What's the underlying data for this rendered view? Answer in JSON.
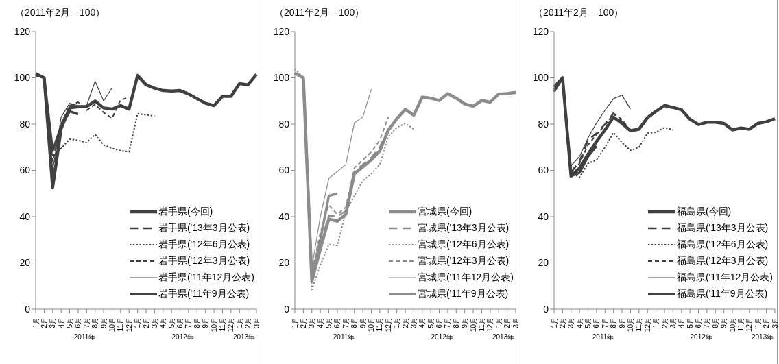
{
  "chart_data": [
    {
      "type": "line",
      "ylabel": "（2011年2月＝100）",
      "categories": [
        "1月",
        "2月",
        "3月",
        "4月",
        "5月",
        "6月",
        "7月",
        "8月",
        "9月",
        "10月",
        "11月",
        "12月",
        "1月",
        "2月",
        "3月",
        "4月",
        "5月",
        "6月",
        "7月",
        "8月",
        "9月",
        "10月",
        "11月",
        "12月",
        "1月",
        "2月",
        "3月"
      ],
      "ylim": [
        0,
        120
      ],
      "yticks": [
        0,
        20,
        40,
        60,
        80,
        100,
        120
      ],
      "grid": false,
      "legend": "bottom right",
      "annotations": [
        "2011年",
        "2012年",
        "2013年"
      ],
      "series": [
        {
          "name": "岩手県(今回)",
          "color": "#404040",
          "line_style": "solid",
          "values": [
            101.8,
            100,
            52.6,
            78,
            87,
            87.5,
            87.5,
            90,
            87,
            86.5,
            88,
            86.5,
            101,
            97,
            95.5,
            94.5,
            94.3,
            94.5,
            93,
            91,
            89,
            88,
            92,
            92,
            97.5,
            97,
            101.5
          ]
        },
        {
          "name": "岩手県('13年3月公表)",
          "color": "#404040",
          "line_style": "dashed",
          "values": [
            101,
            100,
            57,
            80,
            87,
            89.5,
            null,
            null,
            null,
            null,
            null,
            null,
            null,
            null,
            null,
            null,
            null,
            null,
            null,
            null,
            null,
            null,
            null,
            null,
            null,
            null,
            null
          ]
        },
        {
          "name": "岩手県('12年6月公表)",
          "color": "#404040",
          "line_style": "dotted",
          "values": [
            101,
            100,
            66,
            69.5,
            73.5,
            73,
            72,
            75.5,
            71,
            69.5,
            68.5,
            68,
            84.5,
            84,
            83.5,
            null,
            null,
            null,
            null,
            null,
            null,
            null,
            null,
            null,
            null,
            null,
            null
          ]
        },
        {
          "name": "岩手県('12年3月公表)",
          "color": "#404040",
          "line_style": "dashed",
          "values": [
            101,
            100,
            64,
            80,
            88,
            89.5,
            86,
            88.5,
            85,
            82.5,
            90.5,
            91.5,
            null,
            null,
            null,
            null,
            null,
            null,
            null,
            null,
            null,
            null,
            null,
            null,
            null,
            null,
            null
          ]
        },
        {
          "name": "岩手県('11年12月公表)",
          "color": "#404040",
          "line_style": "solid",
          "values": [
            101,
            100,
            60,
            83,
            89,
            88,
            88,
            98.5,
            90,
            95.7,
            null,
            null,
            null,
            null,
            null,
            null,
            null,
            null,
            null,
            null,
            null,
            null,
            null,
            null,
            null,
            null,
            null
          ]
        },
        {
          "name": "岩手県('11年9月公表)",
          "color": "#404040",
          "line_style": "solid",
          "values": [
            101.5,
            100,
            68.5,
            79,
            85.5,
            84.3,
            null,
            null,
            null,
            null,
            null,
            null,
            null,
            null,
            null,
            null,
            null,
            null,
            null,
            null,
            null,
            null,
            null,
            null,
            null,
            null,
            null
          ]
        }
      ]
    },
    {
      "type": "line",
      "ylabel": "（2011年2月＝100）",
      "categories": [
        "1月",
        "2月",
        "3月",
        "4月",
        "5月",
        "6月",
        "7月",
        "8月",
        "9月",
        "10月",
        "11月",
        "12月",
        "1月",
        "2月",
        "3月",
        "4月",
        "5月",
        "6月",
        "7月",
        "8月",
        "9月",
        "10月",
        "11月",
        "12月",
        "1月",
        "2月",
        "3月"
      ],
      "ylim": [
        0,
        120
      ],
      "yticks": [
        0,
        20,
        40,
        60,
        80,
        100,
        120
      ],
      "grid": false,
      "legend": "bottom right",
      "annotations": [
        "2011年",
        "2012年",
        "2013年"
      ],
      "series": [
        {
          "name": "宮城県(今回)",
          "color": "#8c8c8c",
          "line_style": "solid",
          "values": [
            102,
            100,
            12,
            26,
            39,
            38,
            41,
            58.5,
            61.5,
            64.5,
            68.4,
            77.3,
            82.3,
            86.4,
            83.8,
            91.7,
            91.2,
            90.2,
            93.2,
            91.2,
            88.7,
            87.7,
            90.2,
            89.5,
            93,
            93.2,
            93.7
          ]
        },
        {
          "name": "宮城県('13年3月公表)",
          "color": "#8c8c8c",
          "line_style": "dashed",
          "values": [
            102,
            100,
            13,
            28,
            40.5,
            40,
            42.5,
            59.5,
            62.5,
            65.5,
            70,
            78,
            null,
            null,
            null,
            null,
            null,
            null,
            null,
            null,
            null,
            null,
            null,
            null,
            null,
            null,
            null
          ]
        },
        {
          "name": "宮城県('12年6月公表)",
          "color": "#8c8c8c",
          "line_style": "dotted",
          "values": [
            104,
            100,
            8.5,
            19,
            28,
            27.5,
            42,
            49,
            55.5,
            58.5,
            62.5,
            74.5,
            78.5,
            80.3,
            77.8,
            null,
            null,
            null,
            null,
            null,
            null,
            null,
            null,
            null,
            null,
            null,
            null
          ]
        },
        {
          "name": "宮城県('12年3月公表)",
          "color": "#8c8c8c",
          "line_style": "dashed",
          "values": [
            102,
            100,
            16,
            33,
            45,
            41,
            44,
            61,
            64.5,
            68,
            73,
            83,
            null,
            null,
            null,
            null,
            null,
            null,
            null,
            null,
            null,
            null,
            null,
            null,
            null,
            null,
            null
          ]
        },
        {
          "name": "宮城県('11年12月公表)",
          "color": "#8c8c8c",
          "line_style": "solid",
          "values": [
            102,
            100,
            18,
            40,
            56.5,
            59.5,
            62.5,
            80.5,
            83,
            95,
            null,
            null,
            null,
            null,
            null,
            null,
            null,
            null,
            null,
            null,
            null,
            null,
            null,
            null,
            null,
            null,
            null
          ]
        },
        {
          "name": "宮城県('11年9月公表)",
          "color": "#8c8c8c",
          "line_style": "solid",
          "values": [
            102,
            100,
            14,
            30,
            49,
            50,
            null,
            null,
            null,
            null,
            null,
            null,
            null,
            null,
            null,
            null,
            null,
            null,
            null,
            null,
            null,
            null,
            null,
            null,
            null,
            null,
            null
          ]
        }
      ]
    },
    {
      "type": "line",
      "ylabel": "（2011年2月＝100）",
      "categories": [
        "1月",
        "2月",
        "3月",
        "4月",
        "5月",
        "6月",
        "7月",
        "8月",
        "9月",
        "10月",
        "11月",
        "12月",
        "1月",
        "2月",
        "3月",
        "4月",
        "5月",
        "6月",
        "7月",
        "8月",
        "9月",
        "10月",
        "11月",
        "12月",
        "1月",
        "2月",
        "3月"
      ],
      "ylim": [
        0,
        120
      ],
      "yticks": [
        0,
        20,
        40,
        60,
        80,
        100,
        120
      ],
      "grid": false,
      "legend": "bottom right",
      "annotations": [
        "2011年",
        "2012年",
        "2013年"
      ],
      "series": [
        {
          "name": "福島県(今回)",
          "color": "#404040",
          "line_style": "solid",
          "values": [
            96,
            100,
            57.5,
            61,
            67,
            72.5,
            77.5,
            83,
            80.3,
            77.1,
            77.8,
            82.8,
            85.5,
            88,
            87.2,
            86.2,
            82.1,
            79.8,
            80.8,
            80.8,
            80.3,
            77.5,
            78.3,
            77.8,
            80.3,
            81,
            82.3
          ]
        },
        {
          "name": "福島県('13年3月公表)",
          "color": "#404040",
          "line_style": "dashed",
          "values": [
            95,
            100,
            59,
            64,
            73,
            76,
            80,
            84.7,
            81,
            77.5,
            78,
            83,
            86,
            88,
            88,
            null,
            null,
            null,
            null,
            null,
            null,
            null,
            null,
            null,
            null,
            null,
            null
          ]
        },
        {
          "name": "福島県('12年6月公表)",
          "color": "#404040",
          "line_style": "dotted",
          "values": [
            95,
            100,
            59,
            57,
            63,
            64.5,
            70,
            76.3,
            72,
            68.6,
            70,
            76.1,
            76.5,
            78.5,
            77.5,
            null,
            null,
            null,
            null,
            null,
            null,
            null,
            null,
            null,
            null,
            null,
            null
          ]
        },
        {
          "name": "福島県('12年3月公表)",
          "color": "#404040",
          "line_style": "dashed",
          "values": [
            95,
            100,
            60,
            63,
            71,
            75.5,
            79.5,
            84.5,
            82,
            77,
            78,
            83,
            null,
            null,
            null,
            null,
            null,
            null,
            null,
            null,
            null,
            null,
            null,
            null,
            null,
            null,
            null
          ]
        },
        {
          "name": "福島県('11年12月公表)",
          "color": "#404040",
          "line_style": "solid",
          "values": [
            96,
            100,
            62,
            66,
            74,
            80.5,
            86,
            91,
            92.5,
            86.5,
            null,
            null,
            null,
            null,
            null,
            null,
            null,
            null,
            null,
            null,
            null,
            null,
            null,
            null,
            null,
            null,
            null
          ]
        },
        {
          "name": "福島県('11年9月公表)",
          "color": "#404040",
          "line_style": "solid",
          "values": [
            94,
            100,
            57.5,
            59,
            66,
            70.5,
            null,
            null,
            null,
            null,
            null,
            null,
            null,
            null,
            null,
            null,
            null,
            null,
            null,
            null,
            null,
            null,
            null,
            null,
            null,
            null,
            null
          ]
        }
      ]
    }
  ]
}
